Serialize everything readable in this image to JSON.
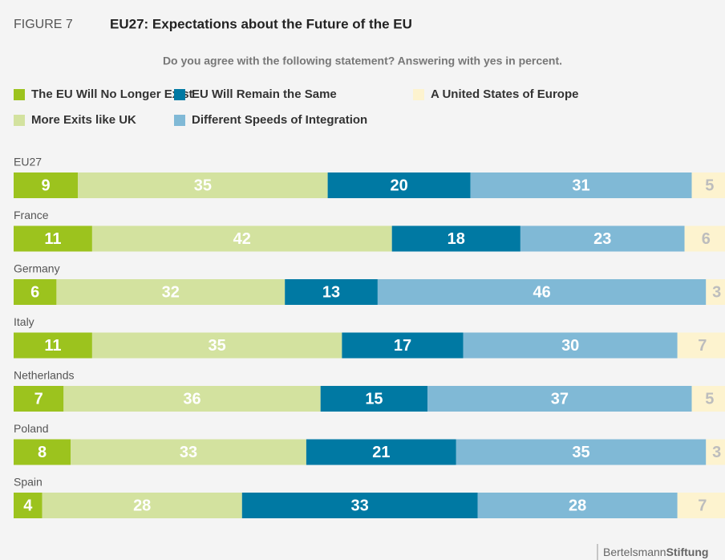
{
  "figure_label": "FIGURE 7",
  "chart_data": {
    "type": "stacked-bar-horizontal",
    "title": "EU27: Expectations about the Future of the EU",
    "subtitle": "Do you agree with the following statement? Answering with yes in percent.",
    "categories": [
      "EU27",
      "France",
      "Germany",
      "Italy",
      "Netherlands",
      "Poland",
      "Spain"
    ],
    "series": [
      {
        "name": "The EU Will No Longer Exist",
        "color": "#9cc31e",
        "values": [
          9,
          11,
          6,
          11,
          7,
          8,
          4
        ]
      },
      {
        "name": "More Exits like UK",
        "color": "#d3e29f",
        "values": [
          35,
          42,
          32,
          35,
          36,
          33,
          28
        ]
      },
      {
        "name": "EU Will Remain the Same",
        "color": "#0079a3",
        "values": [
          20,
          18,
          13,
          17,
          15,
          21,
          33
        ]
      },
      {
        "name": "Different Speeds of Integration",
        "color": "#80b9d6",
        "values": [
          31,
          23,
          46,
          30,
          37,
          35,
          28
        ]
      },
      {
        "name": "A United States of Europe",
        "color": "#fdf3cf",
        "values": [
          5,
          6,
          3,
          7,
          5,
          3,
          7
        ]
      }
    ],
    "xlim": [
      0,
      100
    ]
  },
  "brand": {
    "light": "Bertelsmann",
    "bold": "Stiftung"
  }
}
